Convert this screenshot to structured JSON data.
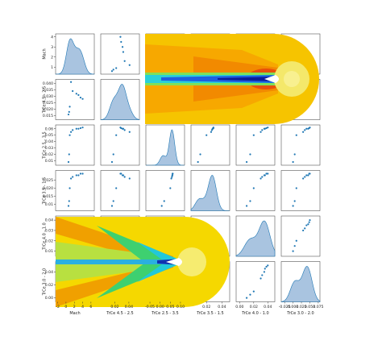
{
  "chart_data": {
    "type": "pairplot",
    "color": "#1f77b4",
    "kde_fill": "#a9c4e0",
    "variables": [
      {
        "name": "Mach",
        "values": [
          0.6,
          0.75,
          0.9,
          1.2,
          1.6,
          2.5,
          3.0,
          3.5,
          4.0
        ],
        "xlim": [
          -2.5,
          6.8
        ],
        "xticks": [
          -2,
          0,
          2,
          4,
          6
        ],
        "ylim": [
          0.3,
          4.3
        ],
        "yticks": [
          1,
          2,
          3,
          4
        ]
      },
      {
        "name": "TrCe 4.5 - 2.5",
        "values": [
          0.016,
          0.018,
          0.022,
          0.041,
          0.034,
          0.032,
          0.031,
          0.029,
          0.028
        ],
        "xlim": [
          0.0,
          0.055
        ],
        "xticks": [
          0.02,
          0.04
        ],
        "ylim": [
          0.012,
          0.043
        ],
        "yticks": [
          0.015,
          {
            "value": 0.02,
            "label": "0.020"
          },
          0.025,
          {
            "value": 0.03,
            "label": "0.030"
          },
          0.035,
          {
            "value": 0.04,
            "label": "0.040"
          }
        ]
      },
      {
        "name": "TrCe 2.5 - 3.5",
        "values": [
          0.008,
          0.02,
          0.05,
          0.055,
          0.058,
          0.06,
          0.06,
          0.061,
          0.062
        ],
        "xlim": [
          -0.07,
          0.12
        ],
        "xticks": [
          -0.05,
          {
            "value": 0,
            "label": "0.00"
          },
          0.05,
          {
            "value": 0.1,
            "label": "0.10"
          }
        ],
        "ylim": [
          0.003,
          0.066
        ],
        "yticks": [
          0.01,
          0.02,
          0.03,
          0.04,
          0.05,
          0.06
        ]
      },
      {
        "name": "TrCe 3.5 - 1.5",
        "values": [
          0.009,
          0.012,
          0.02,
          0.026,
          0.027,
          0.028,
          0.028,
          0.029,
          0.029
        ],
        "xlim": [
          0.0,
          0.05
        ],
        "xticks": [
          0.02,
          0.04
        ],
        "ylim": [
          0.006,
          0.031
        ],
        "yticks": [
          0.01,
          0.015,
          {
            "value": 0.02,
            "label": "0.020"
          },
          0.025
        ]
      },
      {
        "name": "TrCe 4.0 - 1.0",
        "values": [
          0.01,
          0.015,
          0.02,
          0.03,
          0.032,
          0.035,
          0.036,
          0.038,
          0.04
        ],
        "xlim": [
          -0.005,
          0.05
        ],
        "xticks": [
          {
            "value": 0,
            "label": "0.00"
          },
          0.02,
          0.04
        ],
        "ylim": [
          0.005,
          0.044
        ],
        "yticks": [
          0.01,
          0.02,
          0.03,
          0.04
        ]
      },
      {
        "name": "TrCe 3.0 - 2.0",
        "values": [
          0.0,
          0.005,
          0.01,
          0.03,
          0.035,
          0.04,
          0.045,
          0.048,
          0.05
        ],
        "xlim": [
          -0.035,
          0.08
        ],
        "xticks": [
          -0.025,
          {
            "value": 0,
            "label": "0.000"
          },
          0.025,
          {
            "value": 0.05,
            "label": "0.050"
          },
          0.075
        ],
        "ylim": [
          -0.006,
          0.056
        ],
        "yticks": [
          {
            "value": 0,
            "label": "0.00"
          },
          0.02,
          0.04
        ]
      }
    ]
  }
}
